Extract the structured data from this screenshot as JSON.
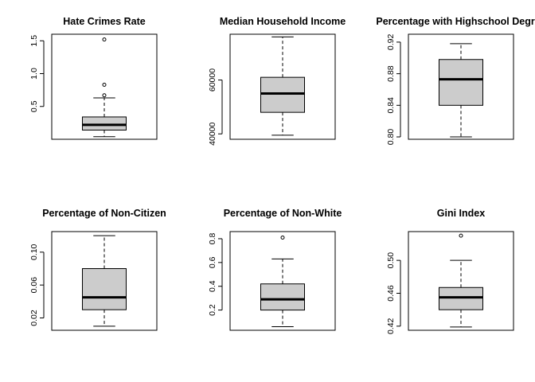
{
  "chart_data": [
    {
      "type": "boxplot",
      "title": "Hate Crimes Rate",
      "ylim": [
        0.0,
        1.6
      ],
      "yticks": [
        0.5,
        1.0,
        1.5
      ],
      "ytick_labels": [
        "0.5",
        "1.0",
        "1.5"
      ],
      "stats": {
        "min": 0.04,
        "q1": 0.14,
        "median": 0.22,
        "q3": 0.34,
        "max": 0.63
      },
      "outliers": [
        0.67,
        0.83,
        1.52
      ]
    },
    {
      "type": "boxplot",
      "title": "Median Household Income",
      "ylim": [
        38000,
        77000
      ],
      "yticks": [
        40000,
        60000
      ],
      "ytick_labels": [
        "40000",
        "60000"
      ],
      "stats": {
        "min": 39500,
        "q1": 48000,
        "median": 55000,
        "q3": 61000,
        "max": 76000
      },
      "outliers": []
    },
    {
      "type": "boxplot",
      "title": "Percentage with Highschool Degree",
      "ylim": [
        0.797,
        0.93
      ],
      "yticks": [
        0.8,
        0.84,
        0.88,
        0.92
      ],
      "ytick_labels": [
        "0.80",
        "0.84",
        "0.88",
        "0.92"
      ],
      "stats": {
        "min": 0.8,
        "q1": 0.84,
        "median": 0.873,
        "q3": 0.898,
        "max": 0.918
      },
      "outliers": []
    },
    {
      "type": "boxplot",
      "title": "Percentage of Non-Citizen",
      "ylim": [
        0.005,
        0.125
      ],
      "yticks": [
        0.02,
        0.06,
        0.1
      ],
      "ytick_labels": [
        "0.02",
        "0.06",
        "0.10"
      ],
      "stats": {
        "min": 0.01,
        "q1": 0.03,
        "median": 0.045,
        "q3": 0.08,
        "max": 0.12
      },
      "outliers": []
    },
    {
      "type": "boxplot",
      "title": "Percentage of Non-White",
      "ylim": [
        0.03,
        0.86
      ],
      "yticks": [
        0.2,
        0.4,
        0.6,
        0.8
      ],
      "ytick_labels": [
        "0.2",
        "0.4",
        "0.6",
        "0.8"
      ],
      "stats": {
        "min": 0.06,
        "q1": 0.2,
        "median": 0.29,
        "q3": 0.42,
        "max": 0.63
      },
      "outliers": [
        0.81
      ]
    },
    {
      "type": "boxplot",
      "title": "Gini Index",
      "ylim": [
        0.415,
        0.535
      ],
      "yticks": [
        0.42,
        0.46,
        0.5
      ],
      "ytick_labels": [
        "0.42",
        "0.46",
        "0.50"
      ],
      "stats": {
        "min": 0.419,
        "q1": 0.44,
        "median": 0.455,
        "q3": 0.467,
        "max": 0.5
      },
      "outliers": [
        0.53
      ]
    }
  ],
  "colors": {
    "box_fill": "#cccccc",
    "stroke": "#000000"
  }
}
